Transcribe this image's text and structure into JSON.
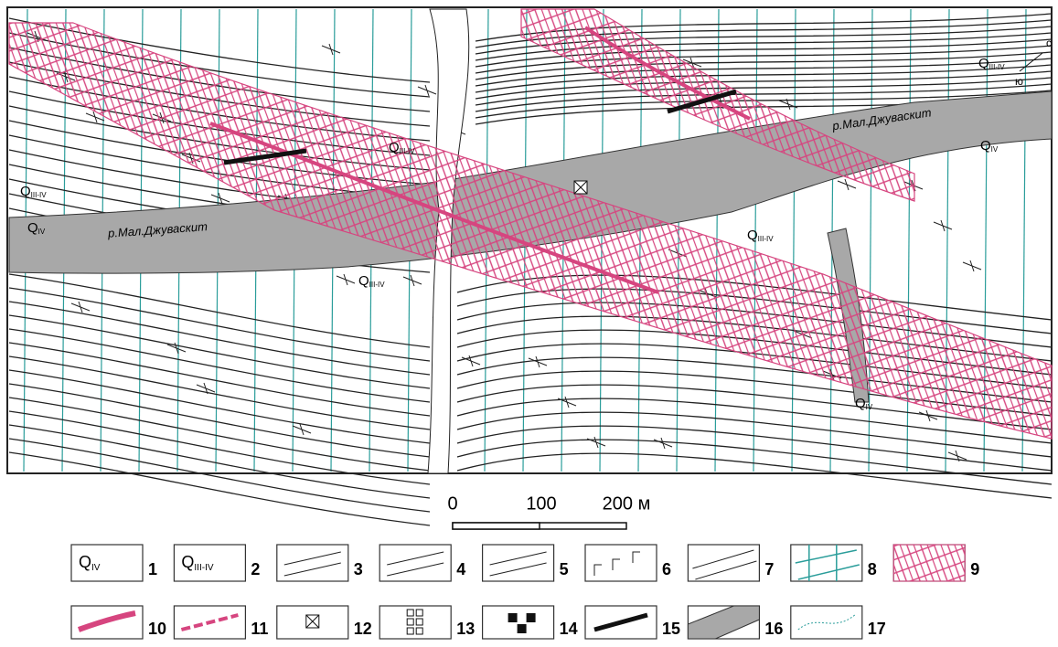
{
  "map": {
    "labels": [
      {
        "text": "Q",
        "sub": "III-IV"
      },
      {
        "text": "Q",
        "sub": "IV"
      },
      {
        "text": "Q",
        "sub": "III-IV"
      },
      {
        "text": "Q",
        "sub": "III-IV"
      },
      {
        "text": "Q",
        "sub": "IV"
      },
      {
        "text": "Q",
        "sub": "III-IV"
      },
      {
        "text": "Q",
        "sub": "III-IV"
      },
      {
        "text": "Q",
        "sub": "IV"
      }
    ],
    "rivers": [
      "р.Мал.Джуваскит",
      "р.Мал.Джуваскит"
    ],
    "north": "с",
    "south": "ю"
  },
  "scale": {
    "ticks": [
      "0",
      "100",
      "200 м"
    ]
  },
  "legend": {
    "items": [
      {
        "number": "1",
        "text": "Q",
        "sub": "IV"
      },
      {
        "number": "2",
        "text": "Q",
        "sub": "III-IV"
      },
      {
        "number": "3"
      },
      {
        "number": "4"
      },
      {
        "number": "5"
      },
      {
        "number": "6"
      },
      {
        "number": "7"
      },
      {
        "number": "8"
      },
      {
        "number": "9"
      },
      {
        "number": "10"
      },
      {
        "number": "11"
      },
      {
        "number": "12"
      },
      {
        "number": "13"
      },
      {
        "number": "14"
      },
      {
        "number": "15"
      },
      {
        "number": "16"
      },
      {
        "number": "17"
      }
    ]
  }
}
